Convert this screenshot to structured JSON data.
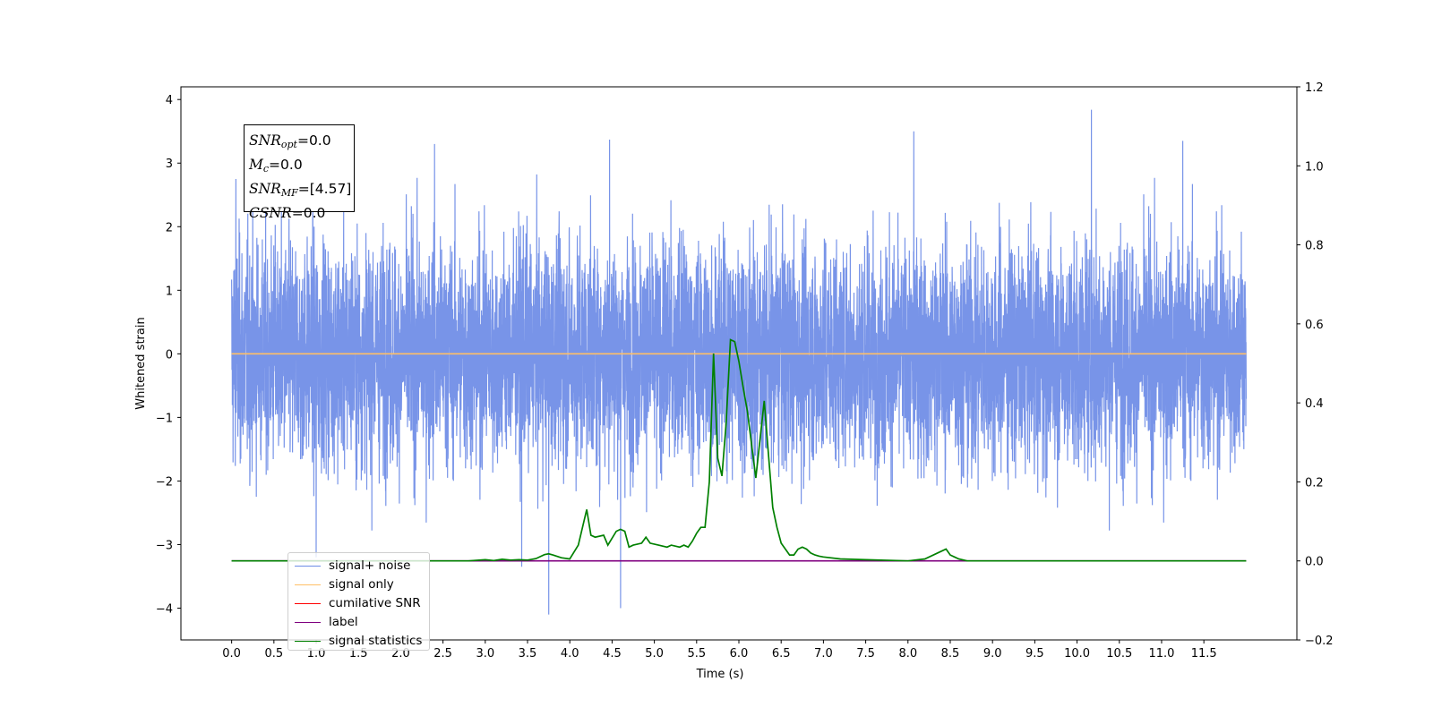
{
  "chart_data": {
    "type": "line",
    "x_axis": {
      "label": "Time (s)",
      "ticks": [
        "0.0",
        "0.5",
        "1.0",
        "1.5",
        "2.0",
        "2.5",
        "3.0",
        "3.5",
        "4.0",
        "4.5",
        "5.0",
        "5.5",
        "6.0",
        "6.5",
        "7.0",
        "7.5",
        "8.0",
        "8.5",
        "9.0",
        "9.5",
        "10.0",
        "10.5",
        "11.0",
        "11.5"
      ],
      "range": [
        -0.6,
        12.6
      ]
    },
    "y_axis_left": {
      "label": "Whitened strain",
      "ticks": [
        "4",
        "3",
        "2",
        "1",
        "0",
        "−1",
        "−2",
        "−3",
        "−4"
      ],
      "range": [
        -4.5,
        4.2
      ]
    },
    "y_axis_right": {
      "ticks": [
        "1.2",
        "1.0",
        "0.8",
        "0.6",
        "0.4",
        "0.2",
        "0.0",
        "−0.2"
      ],
      "range": [
        -0.2,
        1.2
      ]
    },
    "series": [
      {
        "name": "signal+ noise",
        "color": "#6d8be6",
        "axis": "left",
        "x_range": [
          0.0,
          12.0
        ],
        "note_values": {
          "typical_band": [
            -1.6,
            1.6
          ],
          "peak_max": 3.84,
          "peak_max_x": 10.17,
          "peak_min": -4.1,
          "peak_min_x": 3.75
        }
      },
      {
        "name": "signal only",
        "color": "#ffbf66",
        "axis": "left",
        "x": [
          0.0,
          12.0
        ],
        "values": [
          0.0,
          0.0
        ]
      },
      {
        "name": "cumilative SNR",
        "color": "#ff0000",
        "axis": "right",
        "x": [],
        "values": []
      },
      {
        "name": "label",
        "color": "#800080",
        "axis": "right",
        "x": [
          0.0,
          12.0
        ],
        "values": [
          0.0,
          0.0
        ]
      },
      {
        "name": "signal statistics",
        "color": "#008000",
        "axis": "right",
        "x": [
          0.0,
          0.5,
          1.0,
          1.5,
          2.0,
          2.5,
          2.8,
          3.0,
          3.1,
          3.2,
          3.3,
          3.4,
          3.5,
          3.6,
          3.7,
          3.75,
          3.8,
          3.9,
          4.0,
          4.1,
          4.2,
          4.25,
          4.3,
          4.4,
          4.45,
          4.55,
          4.6,
          4.65,
          4.7,
          4.75,
          4.85,
          4.9,
          4.95,
          5.05,
          5.15,
          5.2,
          5.3,
          5.35,
          5.4,
          5.45,
          5.5,
          5.55,
          5.6,
          5.65,
          5.7,
          5.75,
          5.8,
          5.85,
          5.9,
          5.95,
          6.0,
          6.05,
          6.1,
          6.2,
          6.3,
          6.35,
          6.4,
          6.45,
          6.5,
          6.55,
          6.6,
          6.65,
          6.7,
          6.75,
          6.8,
          6.85,
          6.9,
          6.95,
          7.0,
          7.2,
          7.5,
          8.0,
          8.2,
          8.4,
          8.45,
          8.5,
          8.55,
          8.6,
          8.7,
          8.8,
          9.0,
          10.0,
          11.0,
          12.0
        ],
        "values": [
          0.0,
          0.0,
          0.0,
          0.0,
          0.0,
          0.0,
          0.0,
          0.003,
          0.001,
          0.004,
          0.002,
          0.003,
          0.002,
          0.006,
          0.016,
          0.018,
          0.015,
          0.008,
          0.005,
          0.04,
          0.13,
          0.065,
          0.06,
          0.065,
          0.04,
          0.075,
          0.08,
          0.075,
          0.035,
          0.04,
          0.045,
          0.06,
          0.045,
          0.04,
          0.035,
          0.04,
          0.035,
          0.04,
          0.035,
          0.05,
          0.07,
          0.085,
          0.085,
          0.2,
          0.525,
          0.26,
          0.215,
          0.35,
          0.56,
          0.555,
          0.505,
          0.44,
          0.38,
          0.21,
          0.405,
          0.27,
          0.135,
          0.085,
          0.045,
          0.03,
          0.015,
          0.015,
          0.03,
          0.035,
          0.03,
          0.02,
          0.015,
          0.012,
          0.01,
          0.005,
          0.003,
          0.0,
          0.005,
          0.025,
          0.03,
          0.015,
          0.01,
          0.005,
          0.0,
          0.0,
          0.0,
          0.0,
          0.0,
          0.0
        ]
      }
    ],
    "legend_position": "lower-left",
    "grid": false
  },
  "info_box": {
    "line1": {
      "var": "SNR",
      "sub": "opt",
      "value": "=0.0"
    },
    "line2": {
      "var": "M",
      "sub": "c",
      "value": "=0.0"
    },
    "line3": {
      "var": "SNR",
      "sub": "MF",
      "value": "=[4.57]"
    },
    "line4": {
      "var": "CSNR",
      "sub": "",
      "value": "=0.0"
    }
  },
  "legend": {
    "items": [
      {
        "label": "signal+ noise",
        "color": "#6d8be6"
      },
      {
        "label": "signal only",
        "color": "#ffbf66"
      },
      {
        "label": "cumilative SNR",
        "color": "#ff0000"
      },
      {
        "label": "label",
        "color": "#800080"
      },
      {
        "label": "signal statistics",
        "color": "#008000"
      }
    ]
  }
}
